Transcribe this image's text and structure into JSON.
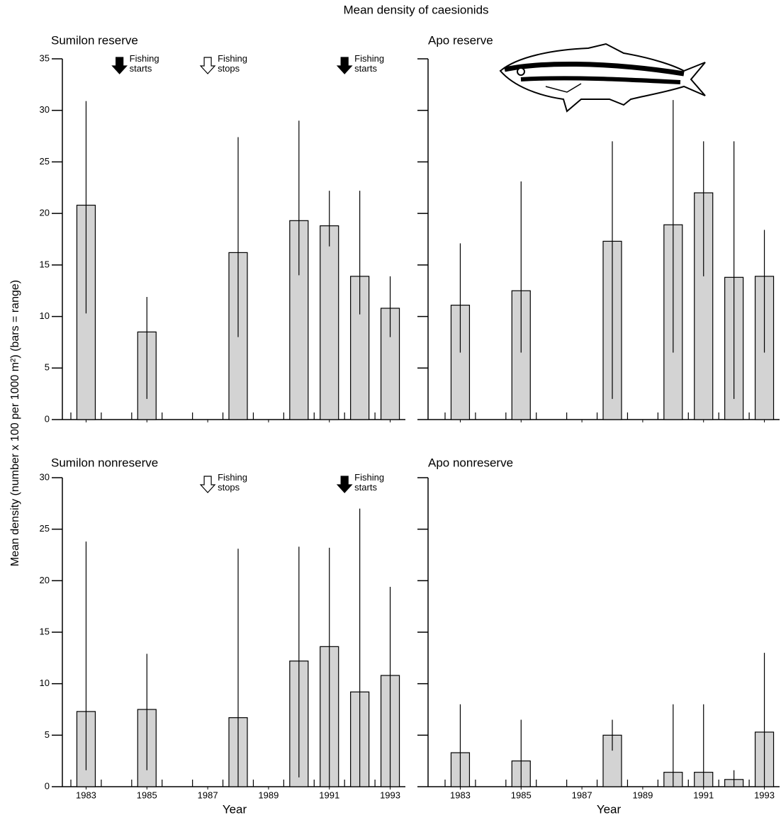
{
  "title": "Mean density of caesionids",
  "y_label": "Mean density (number x 100  per 1000 m²) (bars = range)",
  "chart_data": [
    {
      "type": "bar",
      "title": "Sumilon reserve",
      "color": "#d3d3d3",
      "x": [
        1983,
        1985,
        1988,
        1990,
        1991,
        1992,
        1993
      ],
      "values": [
        20.8,
        8.5,
        16.2,
        19.3,
        18.8,
        13.9,
        10.8
      ],
      "low": [
        10.3,
        2,
        8,
        14,
        16.8,
        10.2,
        8
      ],
      "high": [
        30.9,
        11.9,
        27.4,
        29,
        22.2,
        22.2,
        13.9
      ],
      "xlim": [
        1982.5,
        1993.5
      ],
      "ylim": [
        0,
        35
      ],
      "xticks": [
        1983,
        1985,
        1987,
        1989,
        1991,
        1993
      ],
      "yticks": [
        0,
        5,
        10,
        15,
        20,
        25,
        30,
        35
      ],
      "show_xticklabels": false,
      "show_yticklabels": true,
      "annotations": [
        {
          "text": "Fishing starts",
          "x": 1984.1,
          "filled": true
        },
        {
          "text": "Fishing stops",
          "x": 1987,
          "filled": false
        },
        {
          "text": "Fishing starts",
          "x": 1991.5,
          "filled": true
        }
      ]
    },
    {
      "type": "bar",
      "title": "Apo reserve",
      "color": "#d3d3d3",
      "x": [
        1983,
        1985,
        1988,
        1990,
        1991,
        1992,
        1993
      ],
      "values": [
        11.1,
        12.5,
        17.3,
        18.9,
        22,
        13.8,
        13.9
      ],
      "low": [
        6.5,
        6.5,
        2,
        6.5,
        13.9,
        2,
        6.5
      ],
      "high": [
        17.1,
        23.1,
        27,
        31,
        27,
        27,
        18.4
      ],
      "xlim": [
        1982.5,
        1993.5
      ],
      "ylim": [
        0,
        35
      ],
      "xticks": [
        1983,
        1985,
        1987,
        1989,
        1991,
        1993
      ],
      "yticks": [
        0,
        5,
        10,
        15,
        20,
        25,
        30,
        35
      ],
      "show_xticklabels": false,
      "show_yticklabels": false
    },
    {
      "type": "bar",
      "title": "Sumilon nonreserve",
      "color": "#d3d3d3",
      "x": [
        1983,
        1985,
        1988,
        1990,
        1991,
        1992,
        1993
      ],
      "values": [
        7.3,
        7.5,
        6.7,
        12.2,
        13.6,
        9.2,
        10.8
      ],
      "low": [
        1.6,
        1.6,
        0,
        0.9,
        0,
        0,
        0
      ],
      "high": [
        23.8,
        12.9,
        23.1,
        23.3,
        23.2,
        27,
        19.4
      ],
      "xlim": [
        1982.5,
        1993.5
      ],
      "ylim": [
        0,
        30
      ],
      "xticks": [
        1983,
        1985,
        1987,
        1989,
        1991,
        1993
      ],
      "yticks": [
        0,
        5,
        10,
        15,
        20,
        25,
        30
      ],
      "show_xticklabels": true,
      "show_yticklabels": true,
      "x_label": "Year",
      "annotations": [
        {
          "text": "Fishing stops",
          "x": 1987,
          "filled": false
        },
        {
          "text": "Fishing starts",
          "x": 1991.5,
          "filled": true
        }
      ]
    },
    {
      "type": "bar",
      "title": "Apo nonreserve",
      "color": "#d3d3d3",
      "x": [
        1983,
        1985,
        1988,
        1990,
        1991,
        1992,
        1993
      ],
      "values": [
        3.3,
        2.5,
        5,
        1.4,
        1.4,
        0.7,
        5.3
      ],
      "low": [
        0,
        0,
        3.5,
        0,
        0,
        0,
        0
      ],
      "high": [
        8,
        6.5,
        6.5,
        8,
        8,
        1.6,
        13
      ],
      "xlim": [
        1982.5,
        1993.5
      ],
      "ylim": [
        0,
        30
      ],
      "xticks": [
        1983,
        1985,
        1987,
        1989,
        1991,
        1993
      ],
      "yticks": [
        0,
        5,
        10,
        15,
        20,
        25,
        30
      ],
      "show_xticklabels": true,
      "show_yticklabels": false,
      "x_label": "Year"
    }
  ]
}
